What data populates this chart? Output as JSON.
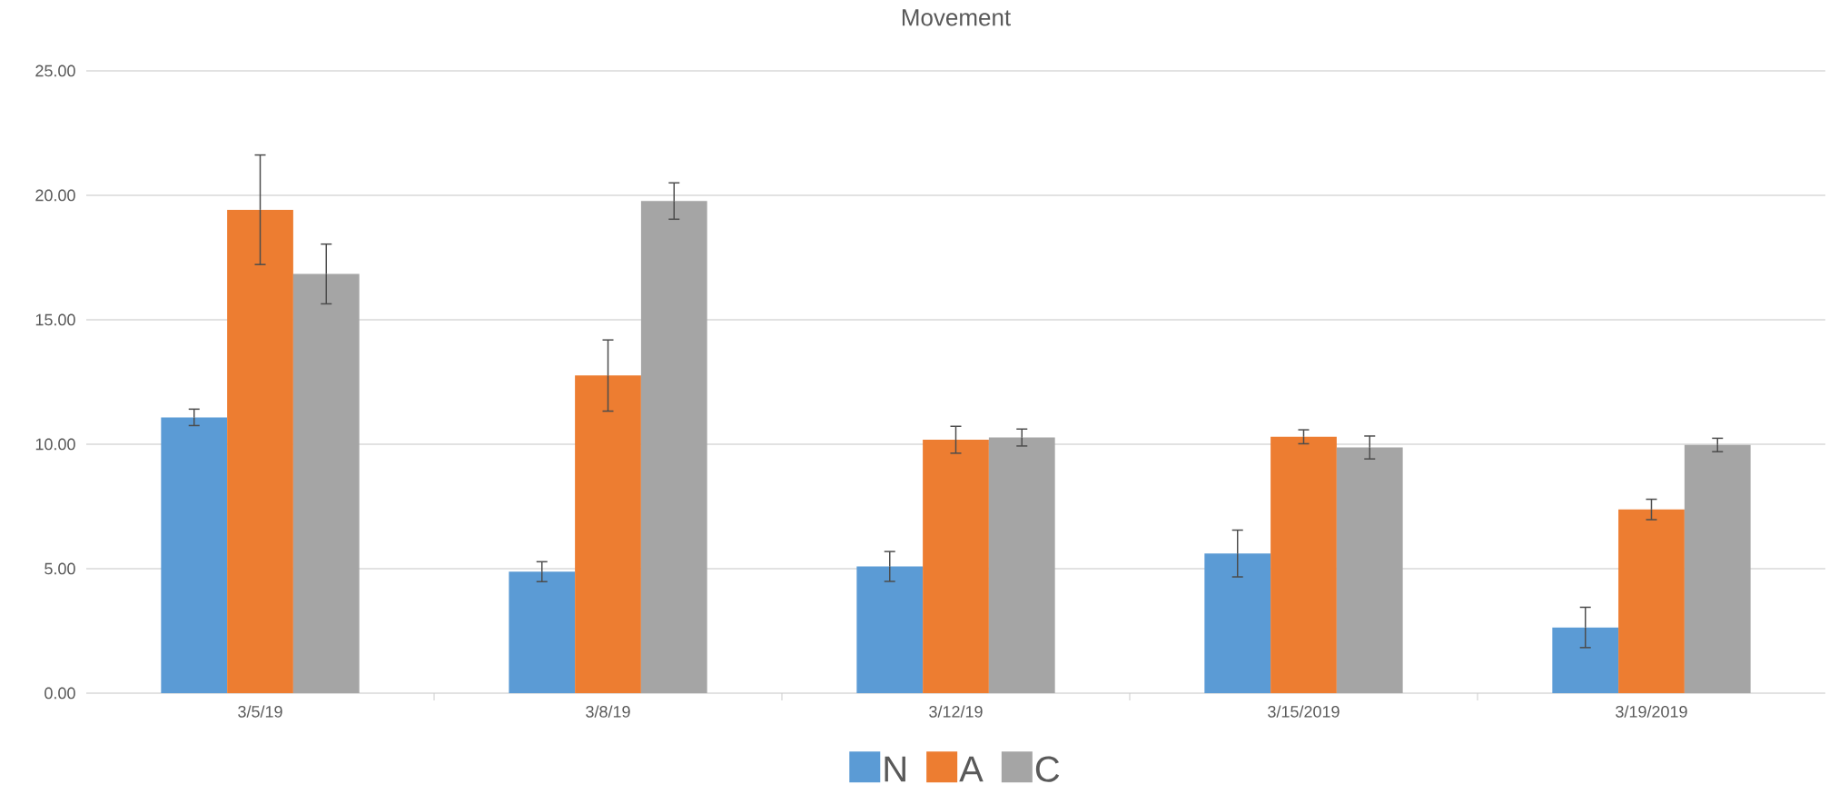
{
  "chart_data": {
    "type": "bar",
    "title": "Movement",
    "categories": [
      "3/5/19",
      "3/8/19",
      "3/12/19",
      "3/15/2019",
      "3/19/2019"
    ],
    "series": [
      {
        "name": "N",
        "color": "#5b9bd5",
        "values": [
          11.08,
          4.88,
          5.09,
          5.61,
          2.64
        ],
        "errors": [
          0.33,
          0.4,
          0.6,
          0.94,
          0.81
        ]
      },
      {
        "name": "A",
        "color": "#ed7d31",
        "values": [
          19.42,
          12.76,
          10.18,
          10.3,
          7.38
        ],
        "errors": [
          2.2,
          1.43,
          0.54,
          0.28,
          0.41
        ]
      },
      {
        "name": "C",
        "color": "#a5a5a5",
        "values": [
          16.84,
          19.77,
          10.27,
          9.87,
          9.97
        ],
        "errors": [
          1.2,
          0.73,
          0.34,
          0.46,
          0.27
        ]
      }
    ],
    "ylim": [
      0,
      25
    ],
    "yticks": [
      {
        "value": 0,
        "label": "0.00"
      },
      {
        "value": 5,
        "label": "5.00"
      },
      {
        "value": 10,
        "label": "10.00"
      },
      {
        "value": 15,
        "label": "15.00"
      },
      {
        "value": 20,
        "label": "20.00"
      },
      {
        "value": 25,
        "label": "25.00"
      }
    ],
    "grid": "y",
    "legend": "bottom"
  }
}
